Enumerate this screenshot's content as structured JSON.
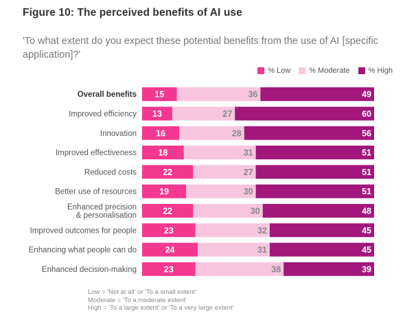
{
  "figure": {
    "title": "Figure 10: The perceived benefits of AI use",
    "subtitle": "'To what extent do you expect these potential benefits from the use of AI [specific application]?'"
  },
  "colors": {
    "low": "#f4388f",
    "moderate": "#f7c6de",
    "high": "#a1177b",
    "label_light": "#ffffff",
    "label_dark": "#888888"
  },
  "legend": [
    {
      "name": "% Low",
      "key": "low"
    },
    {
      "name": "% Moderate",
      "key": "moderate"
    },
    {
      "name": "% High",
      "key": "high"
    }
  ],
  "chart_data": {
    "type": "bar",
    "stacked": true,
    "orientation": "horizontal",
    "categories": [
      "Overall benefits",
      "Improved efficiency",
      "Innovation",
      "Improved effectiveness",
      "Reduced costs",
      "Better use of resources",
      "Enhanced precision\n& personalisation",
      "Improved outcomes for people",
      "Enhancing what people can do",
      "Enhanced decision-making"
    ],
    "bold_categories": [
      "Overall benefits"
    ],
    "series": [
      {
        "name": "% Low",
        "values": [
          15,
          13,
          16,
          18,
          22,
          19,
          22,
          23,
          24,
          23
        ]
      },
      {
        "name": "% Moderate",
        "values": [
          36,
          27,
          28,
          31,
          27,
          30,
          30,
          32,
          31,
          38
        ]
      },
      {
        "name": "% High",
        "values": [
          49,
          60,
          56,
          51,
          51,
          51,
          48,
          45,
          45,
          39
        ]
      }
    ],
    "xlim": [
      0,
      100
    ],
    "legend_position": "top-right",
    "grid": false
  },
  "footnote": [
    "Low = 'Not at all' or 'To a small extent'",
    "Moderate = 'To a moderate extent'",
    "High = 'To a large extent' or 'To a very large extent'"
  ]
}
